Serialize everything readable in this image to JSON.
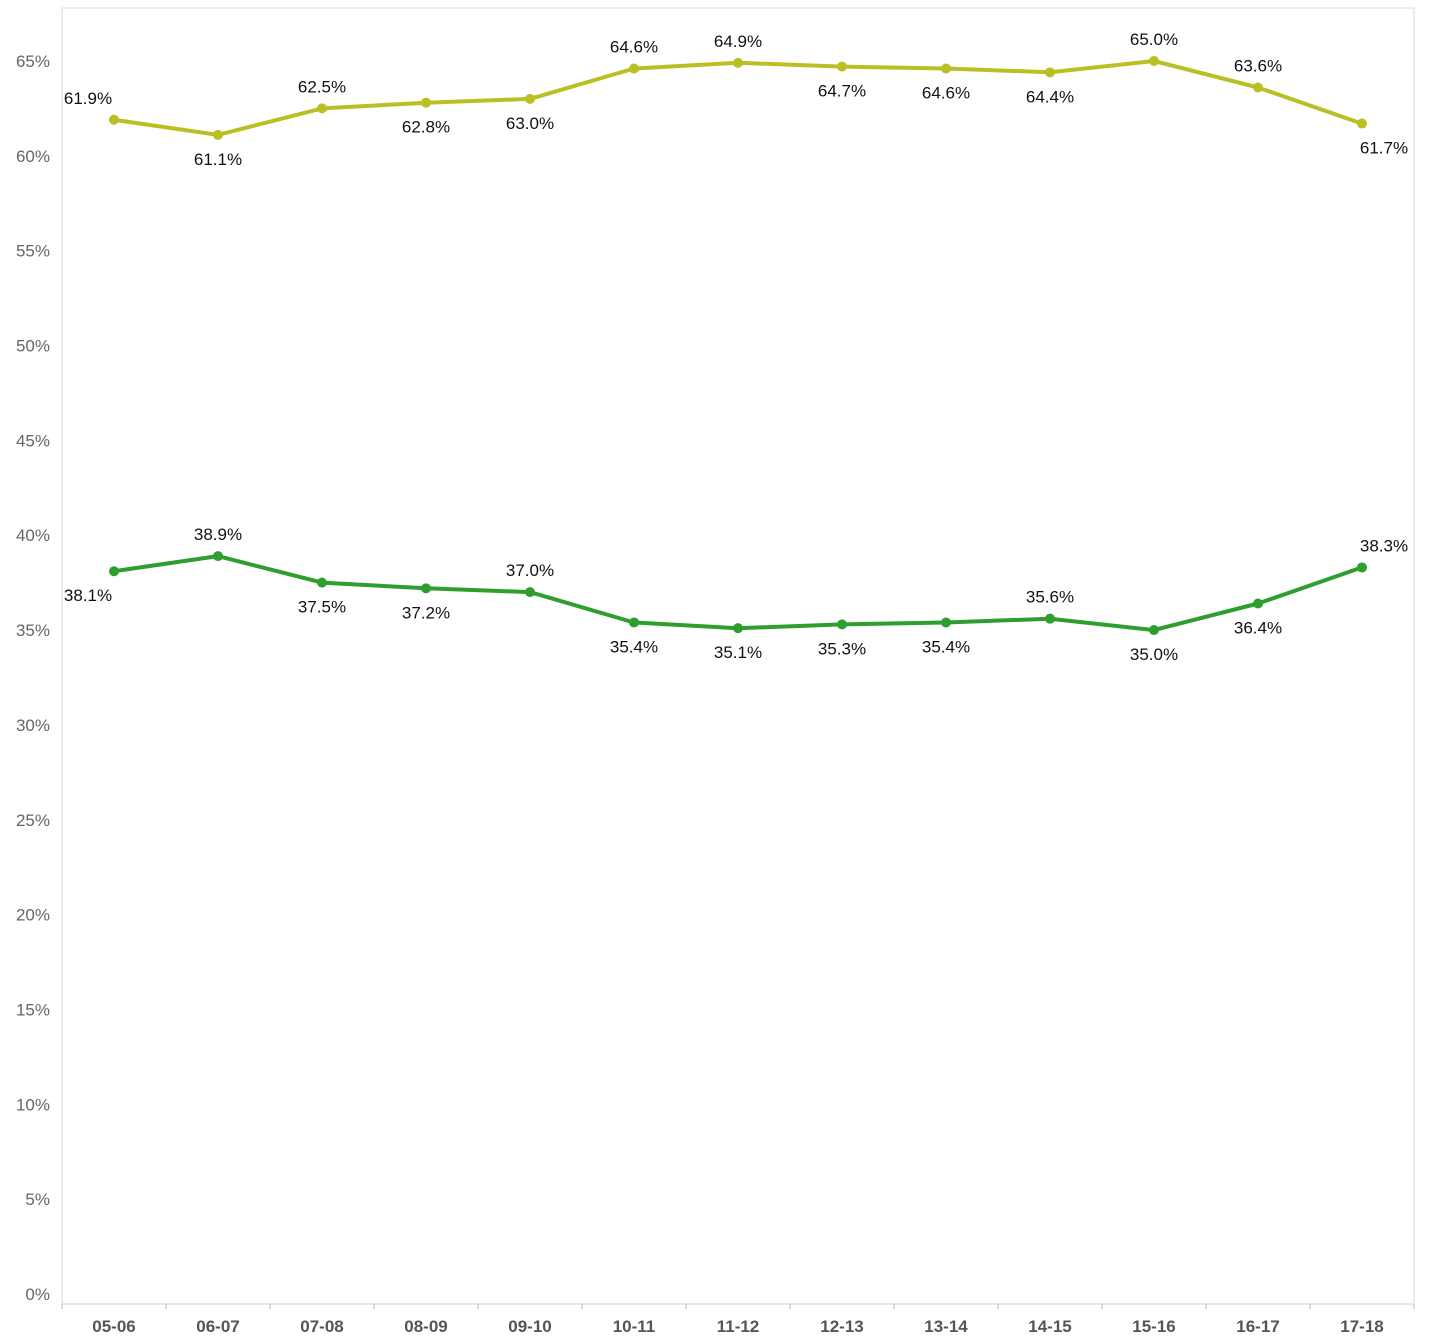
{
  "chart_data": {
    "type": "line",
    "title": "",
    "xlabel": "",
    "ylabel": "",
    "categories": [
      "05-06",
      "06-07",
      "07-08",
      "08-09",
      "09-10",
      "10-11",
      "11-12",
      "12-13",
      "13-14",
      "14-15",
      "15-16",
      "16-17",
      "17-18"
    ],
    "ylim": [
      0,
      68
    ],
    "y_ticks": [
      0,
      5,
      10,
      15,
      20,
      25,
      30,
      35,
      40,
      45,
      50,
      55,
      60,
      65
    ],
    "y_tick_labels": [
      "0%",
      "5%",
      "10%",
      "15%",
      "20%",
      "25%",
      "30%",
      "35%",
      "40%",
      "45%",
      "50%",
      "55%",
      "60%",
      "65%"
    ],
    "grid": false,
    "legend": "none",
    "series": [
      {
        "color": "#bcbf24",
        "values": [
          61.9,
          61.1,
          62.5,
          62.8,
          63.0,
          64.6,
          64.9,
          64.7,
          64.6,
          64.4,
          65.0,
          63.6,
          61.7
        ],
        "labels": [
          "61.9%",
          "61.1%",
          "62.5%",
          "62.8%",
          "63.0%",
          "64.6%",
          "64.9%",
          "64.7%",
          "64.6%",
          "64.4%",
          "65.0%",
          "63.6%",
          "61.7%"
        ],
        "label_positions": [
          "above",
          "below",
          "above",
          "below",
          "below",
          "above",
          "above",
          "below",
          "below",
          "below",
          "above",
          "above",
          "below"
        ]
      },
      {
        "color": "#2e9e2e",
        "values": [
          38.1,
          38.9,
          37.5,
          37.2,
          37.0,
          35.4,
          35.1,
          35.3,
          35.4,
          35.6,
          35.0,
          36.4,
          38.3
        ],
        "labels": [
          "38.1%",
          "38.9%",
          "37.5%",
          "37.2%",
          "37.0%",
          "35.4%",
          "35.1%",
          "35.3%",
          "35.4%",
          "35.6%",
          "35.0%",
          "36.4%",
          "38.3%"
        ],
        "label_positions": [
          "below",
          "above",
          "below",
          "below",
          "above",
          "below",
          "below",
          "below",
          "below",
          "above",
          "below",
          "below",
          "above"
        ]
      }
    ]
  }
}
